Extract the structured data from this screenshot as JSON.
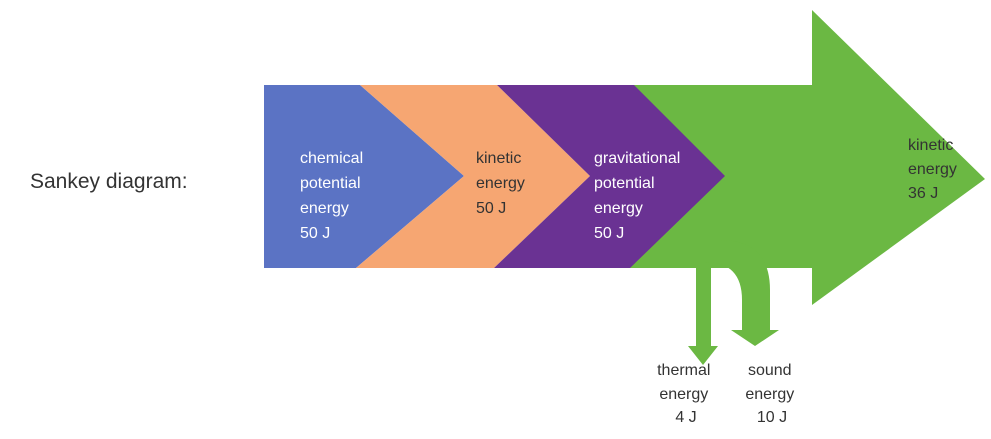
{
  "title": "Sankey diagram:",
  "stages": [
    {
      "lines": [
        "chemical",
        "potential",
        "energy",
        "50 J"
      ],
      "color": "#5b73c4",
      "text_color": "#ffffff"
    },
    {
      "lines": [
        "kinetic",
        "energy",
        "50 J"
      ],
      "color": "#f6a672",
      "text_color": "#333333"
    },
    {
      "lines": [
        "gravitational",
        "potential",
        "energy",
        "50 J"
      ],
      "color": "#6a3293",
      "text_color": "#ffffff"
    }
  ],
  "flows": {
    "color": "#6bb843",
    "input_value": 50,
    "main_output": {
      "lines": [
        "kinetic",
        "energy",
        "36 J"
      ],
      "value": 36
    },
    "losses": [
      {
        "lines": [
          "thermal",
          "energy",
          "4 J"
        ],
        "value": 4
      },
      {
        "lines": [
          "sound",
          "energy",
          "10 J"
        ],
        "value": 10
      }
    ]
  },
  "label_color": "#333333"
}
